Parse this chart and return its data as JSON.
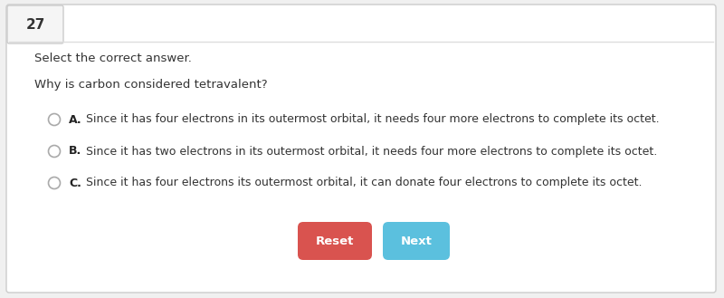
{
  "question_number": "27",
  "instruction": "Select the correct answer.",
  "question": "Why is carbon considered tetravalent?",
  "options": [
    {
      "label": "A.",
      "text": "Since it has four electrons in its outermost orbital, it needs four more electrons to complete its octet."
    },
    {
      "label": "B.",
      "text": "Since it has two electrons in its outermost orbital, it needs four more electrons to complete its octet."
    },
    {
      "label": "C.",
      "text": "Since it has four electrons its outermost orbital, it can donate four electrons to complete its octet."
    }
  ],
  "reset_button": {
    "text": "Reset",
    "color": "#d9534f"
  },
  "next_button": {
    "text": "Next",
    "color": "#5bc0de"
  },
  "bg_color": "#f0f0f0",
  "card_color": "#ffffff",
  "border_color": "#cccccc",
  "number_bg": "#f5f5f5",
  "number_border": "#cccccc",
  "text_color": "#333333",
  "label_color": "#222222",
  "radio_edge_color": "#aaaaaa",
  "divider_color": "#dddddd",
  "font_size_number": 11,
  "font_size_instruction": 9.5,
  "font_size_question": 9.5,
  "font_size_option": 9,
  "font_size_button": 9.5
}
